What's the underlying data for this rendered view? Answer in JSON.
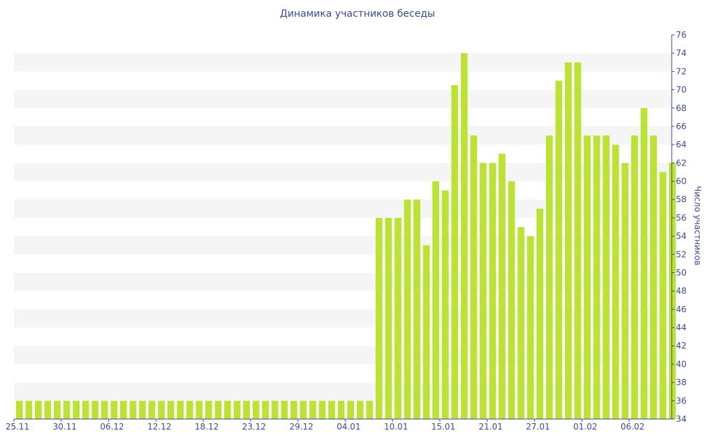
{
  "chart_data": {
    "type": "bar",
    "title": "Динамика участников беседы",
    "xlabel": "",
    "ylabel": "Число участников",
    "ylim": [
      34,
      76
    ],
    "y_ticks": [
      34,
      36,
      38,
      40,
      42,
      44,
      46,
      48,
      50,
      52,
      54,
      56,
      58,
      60,
      62,
      64,
      66,
      68,
      70,
      72,
      74,
      76
    ],
    "y_axis_side": "right",
    "grid": "horizontal-bands",
    "legend": "none",
    "x_tick_labels": [
      "25.11",
      "30.11",
      "06.12",
      "12.12",
      "18.12",
      "23.12",
      "29.12",
      "04.01",
      "10.01",
      "15.01",
      "21.01",
      "27.01",
      "01.02",
      "06.02"
    ],
    "x_tick_indices": [
      0,
      5,
      10,
      15,
      20,
      25,
      30,
      35,
      40,
      45,
      50,
      55,
      60,
      65
    ],
    "bar_color": "#bde236",
    "values": [
      36,
      36,
      36,
      36,
      36,
      36,
      36,
      36,
      36,
      36,
      36,
      36,
      36,
      36,
      36,
      36,
      36,
      36,
      36,
      36,
      36,
      36,
      36,
      36,
      36,
      36,
      36,
      36,
      36,
      36,
      36,
      36,
      36,
      36,
      36,
      36,
      36,
      36,
      56,
      56,
      56,
      58,
      58,
      53,
      60,
      59,
      70.5,
      74,
      65,
      62,
      62,
      63,
      60,
      55,
      54,
      57,
      65,
      71,
      73,
      73,
      65,
      65,
      65,
      64,
      62,
      65,
      68,
      65,
      61,
      62
    ]
  },
  "colors": {
    "title": "#3b4a8a",
    "axis_text": "#3b4a8a",
    "band": "#f5f5f5",
    "bar": "#bde236"
  }
}
